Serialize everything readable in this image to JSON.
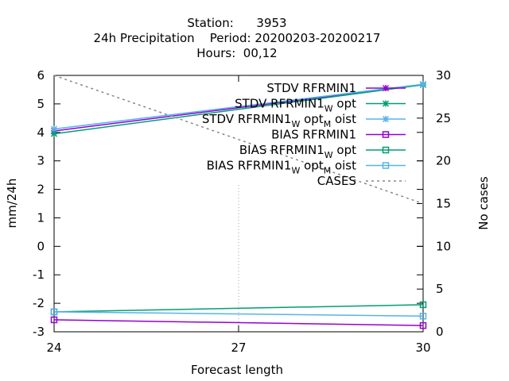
{
  "title_lines": [
    "Station:      3953",
    "24h Precipitation    Period: 20200203-20200217",
    "Hours:  00,12"
  ],
  "chart_data": {
    "type": "line",
    "xlabel": "Forecast length",
    "ylabel": "mm/24h",
    "y2label": "No cases",
    "xlim": [
      24,
      30
    ],
    "ylim": [
      -3,
      6
    ],
    "y2lim": [
      0,
      30
    ],
    "xticks": [
      "24",
      "27",
      "30"
    ],
    "yticks": [
      "-3",
      "-2",
      "-1",
      "0",
      "1",
      "2",
      "3",
      "4",
      "5",
      "6"
    ],
    "y2ticks": [
      "0",
      "5",
      "10",
      "15",
      "20",
      "25",
      "30"
    ],
    "x": [
      24,
      30
    ],
    "grid": "x=27 dotted",
    "legend_position": "top-right",
    "series": [
      {
        "name_parts": [
          [
            "STDV RFRMIN1",
            ""
          ]
        ],
        "color": "#9400d3",
        "marker": "x",
        "axis": "y",
        "values": [
          4.05,
          5.68
        ]
      },
      {
        "name_parts": [
          [
            "STDV RFRMIN1",
            ""
          ],
          [
            "W",
            "sub"
          ],
          [
            "opt",
            ""
          ]
        ],
        "color": "#009e73",
        "marker": "x",
        "axis": "y",
        "values": [
          3.95,
          5.67
        ]
      },
      {
        "name_parts": [
          [
            "STDV RFRMIN1",
            ""
          ],
          [
            "W",
            "sub"
          ],
          [
            "opt",
            ""
          ],
          [
            "M",
            "sub"
          ],
          [
            "oist",
            ""
          ]
        ],
        "color": "#56b4e9",
        "marker": "x",
        "axis": "y",
        "values": [
          4.12,
          5.69
        ]
      },
      {
        "name_parts": [
          [
            "BIAS RFRMIN1",
            ""
          ]
        ],
        "color": "#9400d3",
        "marker": "square",
        "axis": "y",
        "values": [
          -2.58,
          -2.78
        ]
      },
      {
        "name_parts": [
          [
            "BIAS RFRMIN1",
            ""
          ],
          [
            "W",
            "sub"
          ],
          [
            "opt",
            ""
          ]
        ],
        "color": "#009e73",
        "marker": "square",
        "axis": "y",
        "values": [
          -2.3,
          -2.05
        ]
      },
      {
        "name_parts": [
          [
            "BIAS RFRMIN1",
            ""
          ],
          [
            "W",
            "sub"
          ],
          [
            "opt",
            ""
          ],
          [
            "M",
            "sub"
          ],
          [
            "oist",
            ""
          ]
        ],
        "color": "#56b4e9",
        "marker": "square",
        "axis": "y",
        "values": [
          -2.3,
          -2.45
        ]
      },
      {
        "name_parts": [
          [
            "CASES",
            ""
          ]
        ],
        "color": "#888888",
        "marker": "none",
        "dash": "dotted",
        "axis": "y2",
        "values": [
          30,
          15
        ]
      }
    ]
  }
}
